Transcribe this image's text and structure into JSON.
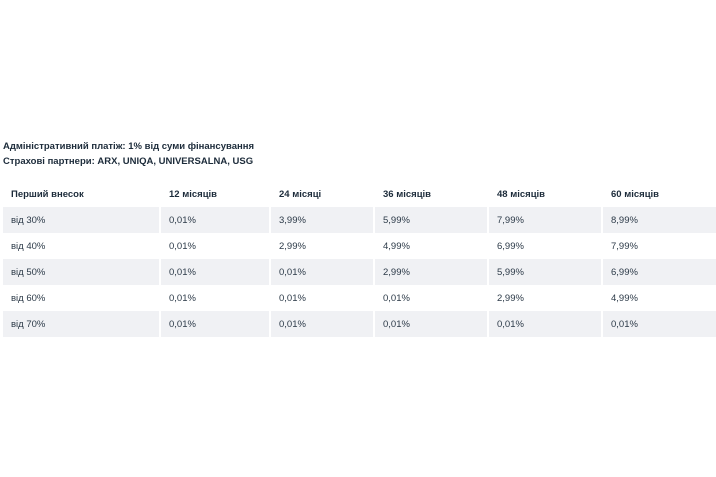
{
  "info": {
    "admin_fee": "Адміністративний платіж: 1% від суми фінансування",
    "insurance_partners": "Страхові партнери: ARX, UNIQA, UNIVERSALNA, USG"
  },
  "table": {
    "headers": [
      "Перший внесок",
      "12 місяців",
      "24 місяці",
      "36 місяців",
      "48 місяців",
      "60 місяців"
    ],
    "rows": [
      [
        "від 30%",
        "0,01%",
        "3,99%",
        "5,99%",
        "7,99%",
        "8,99%"
      ],
      [
        "від 40%",
        "0,01%",
        "2,99%",
        "4,99%",
        "6,99%",
        "7,99%"
      ],
      [
        "від 50%",
        "0,01%",
        "0,01%",
        "2,99%",
        "5,99%",
        "6,99%"
      ],
      [
        "від 60%",
        "0,01%",
        "0,01%",
        "0,01%",
        "2,99%",
        "4,99%"
      ],
      [
        "від 70%",
        "0,01%",
        "0,01%",
        "0,01%",
        "0,01%",
        "0,01%"
      ]
    ]
  },
  "colors": {
    "row_gray": "#f0f1f4",
    "text": "#1c2b3a"
  }
}
